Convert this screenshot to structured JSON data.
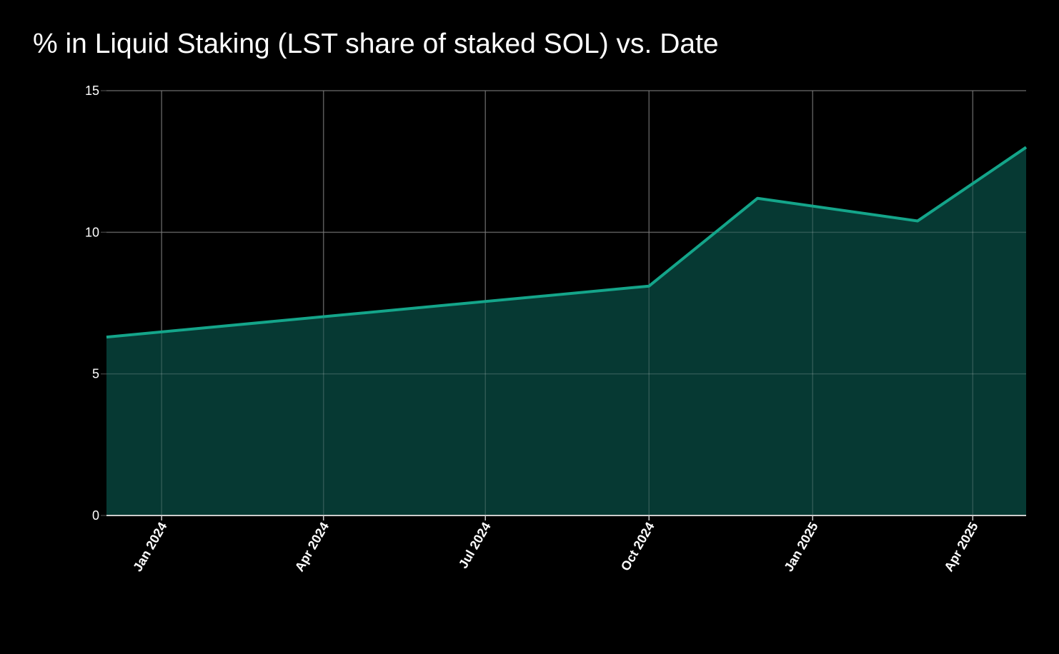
{
  "chart_data": {
    "type": "area",
    "title": "% in Liquid Staking (LST share of staked SOL) vs. Date",
    "xlabel": "",
    "ylabel": "",
    "x": [
      "2023-12-01",
      "2024-10-01",
      "2024-12-01",
      "2025-03-01",
      "2025-05-01"
    ],
    "series": [
      {
        "values": [
          6.3,
          8.1,
          11.2,
          10.4,
          13.0
        ]
      }
    ],
    "ylim": [
      0,
      15
    ],
    "xlim": [
      "2023-12-01",
      "2025-05-01"
    ],
    "yticks": [
      {
        "value": 0,
        "label": "0"
      },
      {
        "value": 5,
        "label": "5"
      },
      {
        "value": 10,
        "label": "10"
      },
      {
        "value": 15,
        "label": "15"
      }
    ],
    "xticks": [
      {
        "date": "2024-01-01",
        "label": "Jan 2024"
      },
      {
        "date": "2024-04-01",
        "label": "Apr 2024"
      },
      {
        "date": "2024-07-01",
        "label": "Jul 2024"
      },
      {
        "date": "2024-10-01",
        "label": "Oct 2024"
      },
      {
        "date": "2025-01-01",
        "label": "Jan 2025"
      },
      {
        "date": "2025-04-01",
        "label": "Apr 2025"
      }
    ],
    "grid": true,
    "colors": {
      "background": "#000000",
      "line": "#14a58a",
      "fill": "#063933",
      "grid": "#3a3a3a",
      "axis": "#cccccc",
      "text": "#ffffff"
    }
  }
}
